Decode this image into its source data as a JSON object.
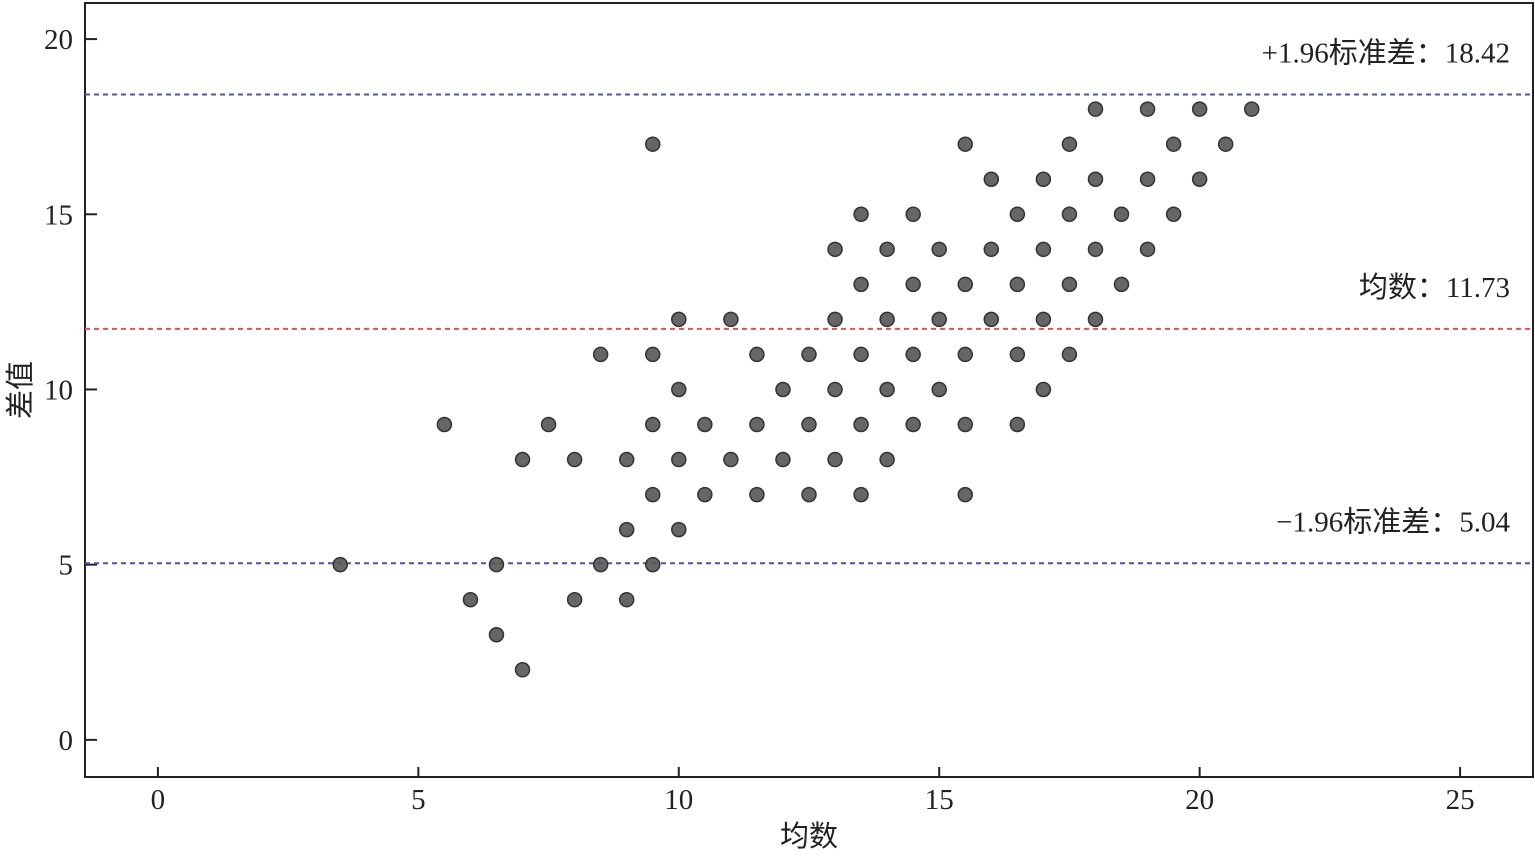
{
  "chart_data": {
    "type": "scatter",
    "xlabel": "均数",
    "ylabel": "差值",
    "x": [
      18,
      19,
      20,
      21,
      9.5,
      15.5,
      17.5,
      19.5,
      20.5,
      16,
      17,
      18,
      19,
      20,
      13.5,
      14.5,
      16.5,
      17.5,
      18.5,
      19.5,
      13,
      14,
      15,
      16,
      17,
      18,
      19,
      13.5,
      14.5,
      15.5,
      16.5,
      17.5,
      18.5,
      10,
      11,
      13,
      14,
      15,
      16,
      17,
      18,
      8.5,
      9.5,
      11.5,
      12.5,
      13.5,
      14.5,
      15.5,
      16.5,
      17.5,
      10,
      12,
      13,
      14,
      15,
      17,
      5.5,
      7.5,
      9.5,
      10.5,
      11.5,
      12.5,
      13.5,
      14.5,
      15.5,
      16.5,
      7,
      8,
      9,
      10,
      11,
      12,
      13,
      14,
      9.5,
      10.5,
      11.5,
      12.5,
      13.5,
      15.5,
      9,
      10,
      3.5,
      6.5,
      8.5,
      9.5,
      6,
      8,
      9,
      6.5,
      7
    ],
    "values": [
      18,
      18,
      18,
      18,
      17,
      17,
      17,
      17,
      17,
      16,
      16,
      16,
      16,
      16,
      15,
      15,
      15,
      15,
      15,
      15,
      14,
      14,
      14,
      14,
      14,
      14,
      14,
      13,
      13,
      13,
      13,
      13,
      13,
      12,
      12,
      12,
      12,
      12,
      12,
      12,
      12,
      11,
      11,
      11,
      11,
      11,
      11,
      11,
      11,
      11,
      10,
      10,
      10,
      10,
      10,
      10,
      9,
      9,
      9,
      9,
      9,
      9,
      9,
      9,
      9,
      9,
      8,
      8,
      8,
      8,
      8,
      8,
      8,
      8,
      7,
      7,
      7,
      7,
      7,
      7,
      6,
      6,
      5,
      5,
      5,
      5,
      4,
      4,
      4,
      3,
      2
    ],
    "color": "#555555",
    "lines": [
      {
        "label": "+1.96标准差：18.42",
        "value": 18.42,
        "color": "#4a56a6"
      },
      {
        "label": "均数：11.73",
        "value": 11.73,
        "color": "#e05050"
      },
      {
        "label": "−1.96标准差：5.04",
        "value": 5.04,
        "color": "#4a56a6"
      }
    ],
    "xlim": [
      -1.4,
      26.4
    ],
    "ylim": [
      -1.06,
      21.03
    ],
    "xticks": [
      0,
      5,
      10,
      15,
      20,
      25
    ],
    "yticks": [
      0,
      5,
      10,
      15,
      20
    ]
  }
}
